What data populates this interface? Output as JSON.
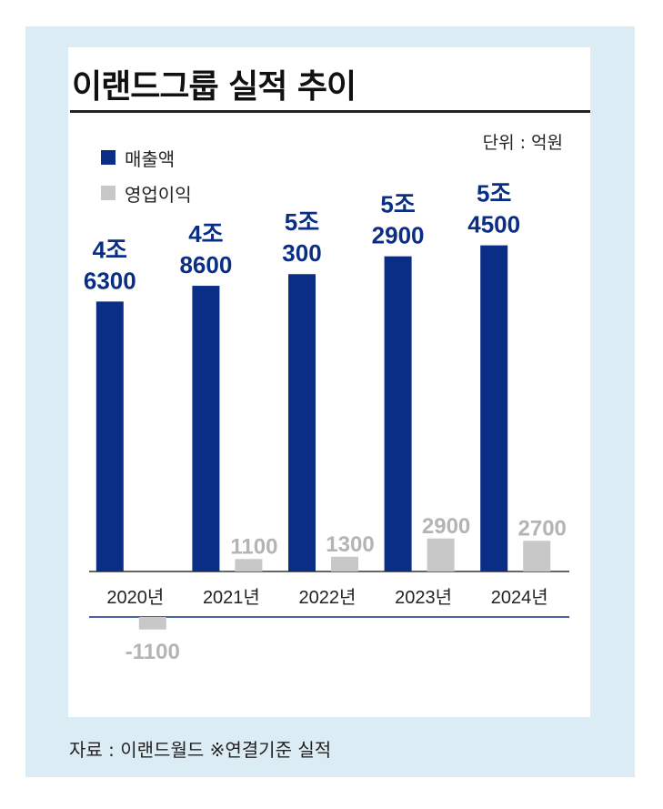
{
  "title": "이랜드그룹 실적 추이",
  "unit": "단위 : 억원",
  "source": "자료 : 이랜드월드 ※연결기준 실적",
  "colors": {
    "revenue": "#0a2d86",
    "profit": "#c8c8c8",
    "profit_label": "#b4b4b4",
    "frame": "#dcecf4"
  },
  "chart_data": {
    "type": "bar",
    "categories": [
      "2020년",
      "2021년",
      "2022년",
      "2023년",
      "2024년"
    ],
    "series": [
      {
        "name": "매출액",
        "values": [
          46300,
          48600,
          50300,
          52900,
          54500
        ],
        "labels": [
          [
            "4조",
            "6300"
          ],
          [
            "4조",
            "8600"
          ],
          [
            "5조",
            "300"
          ],
          [
            "5조",
            "2900"
          ],
          [
            "5조",
            "4500"
          ]
        ]
      },
      {
        "name": "영업이익",
        "values": [
          -1100,
          1100,
          1300,
          2900,
          2700
        ],
        "labels": [
          "-1100",
          "1100",
          "1300",
          "2900",
          "2700"
        ]
      }
    ],
    "legend": "top-left",
    "grid": false
  }
}
